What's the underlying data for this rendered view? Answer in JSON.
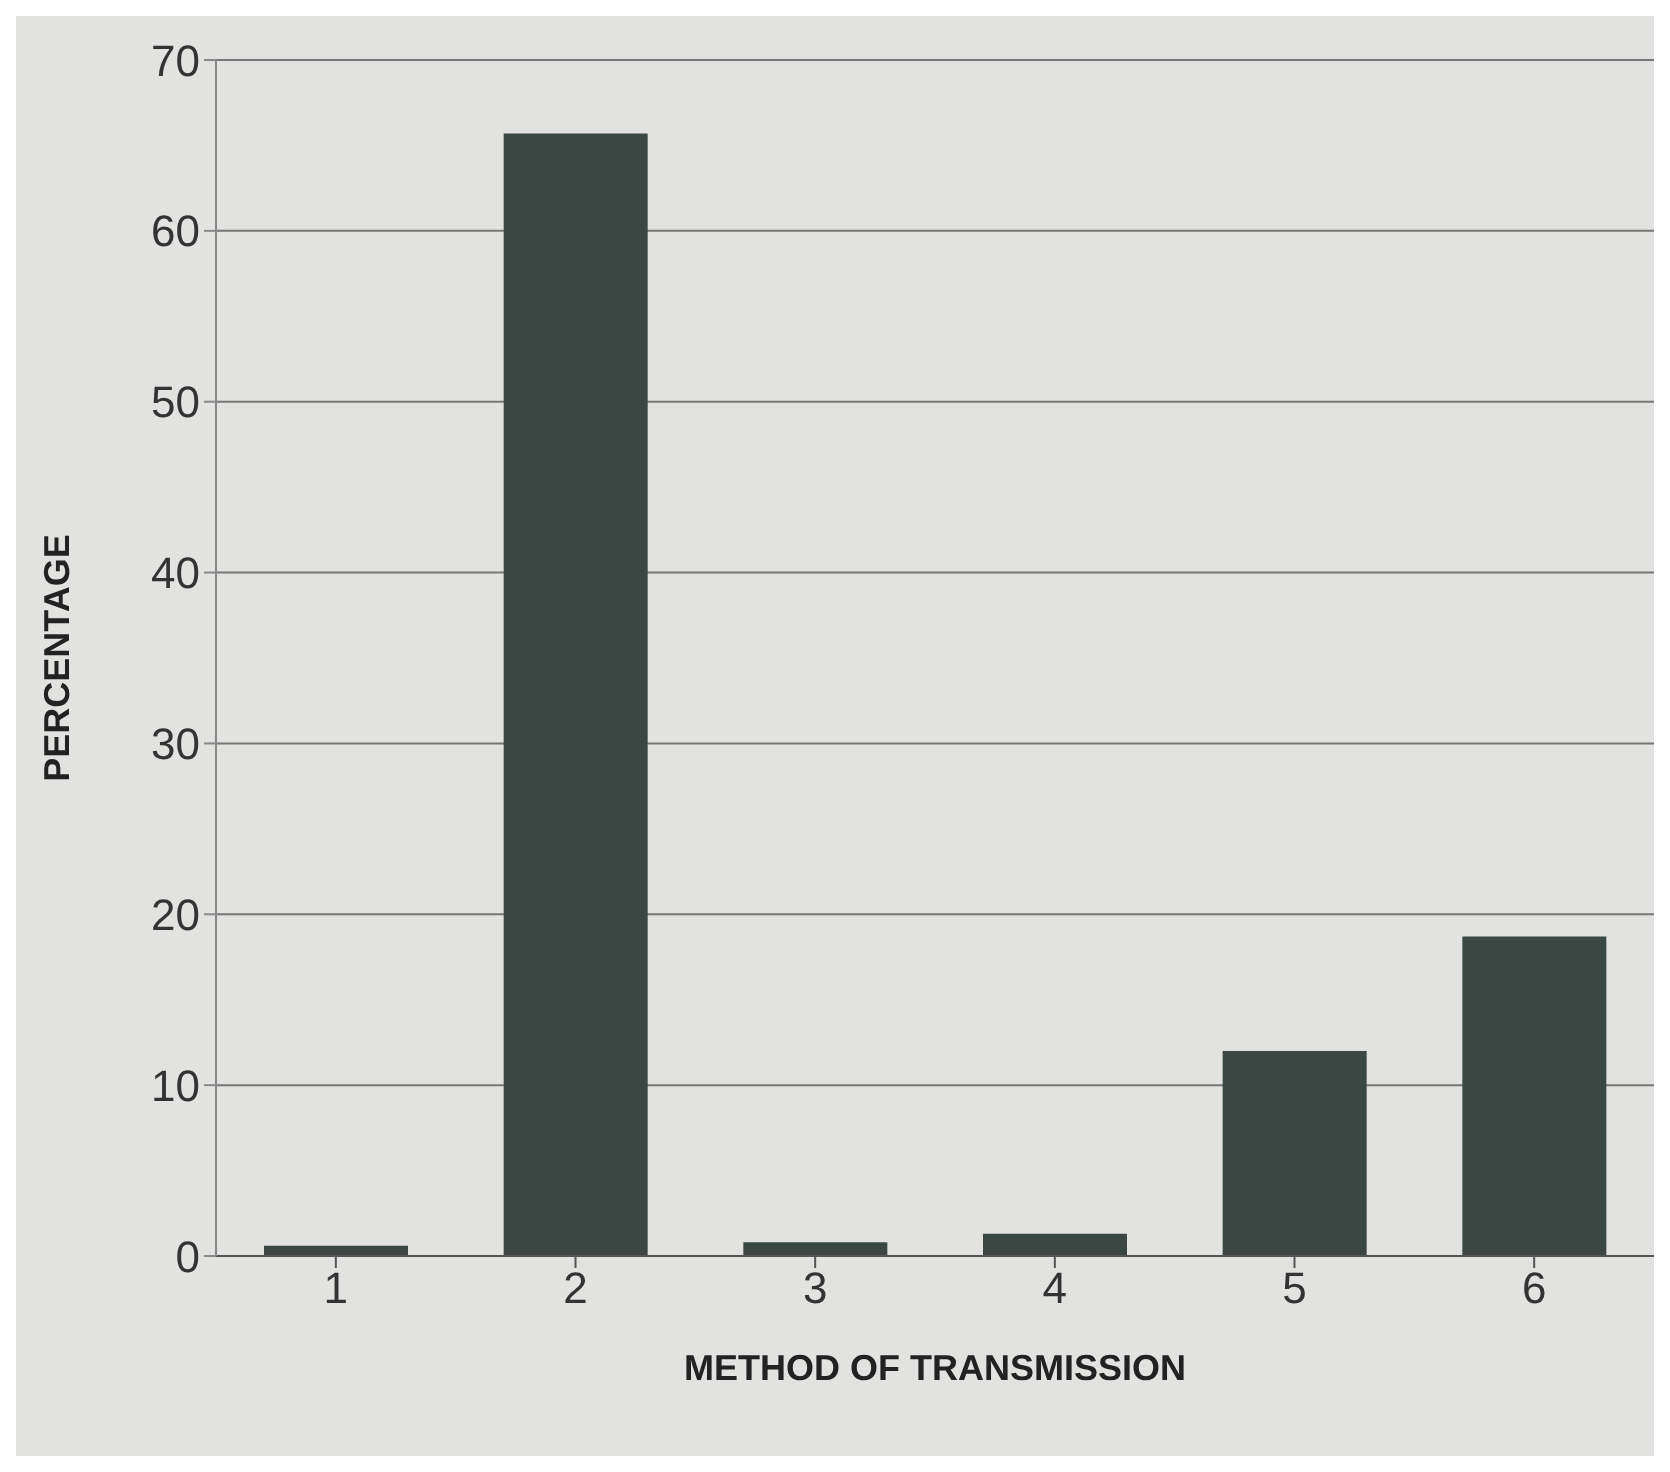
{
  "chart_data": {
    "type": "bar",
    "xlabel": "METHOD OF TRANSMISSION",
    "ylabel": "PERCENTAGE",
    "categories": [
      "1",
      "2",
      "3",
      "4",
      "5",
      "6"
    ],
    "values": [
      0.6,
      65.7,
      0.8,
      1.3,
      12.0,
      18.7
    ],
    "color": "#3b4743",
    "ylim": [
      0,
      70
    ],
    "yticks": [
      0,
      10,
      20,
      30,
      40,
      50,
      60,
      70
    ],
    "grid": "y"
  }
}
